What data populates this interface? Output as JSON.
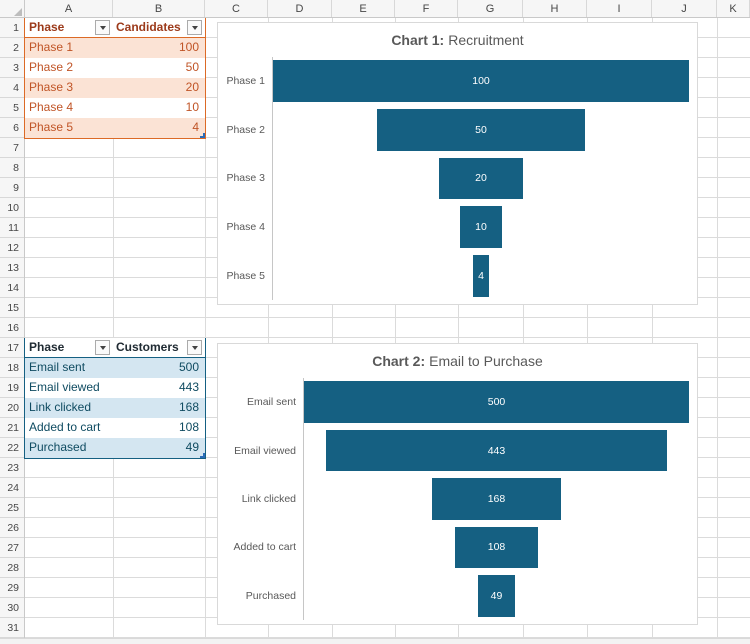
{
  "sheet": {
    "column_letters": [
      "A",
      "B",
      "C",
      "D",
      "E",
      "F",
      "G",
      "H",
      "I",
      "J",
      "K"
    ],
    "row_numbers": [
      1,
      2,
      3,
      4,
      5,
      6,
      7,
      8,
      9,
      10,
      11,
      12,
      13,
      14,
      15,
      16,
      17,
      18,
      19,
      20,
      21,
      22,
      23,
      24,
      25,
      26,
      27,
      28,
      29,
      30,
      31
    ]
  },
  "colors": {
    "accent_teal": "#156082",
    "accent_orange": "#DD6B20",
    "grid_line": "#DBDBDB",
    "header_text": "#474747",
    "chart_text": "#595959"
  },
  "tables": [
    {
      "name": "recruitment-table",
      "columns": [
        "Phase",
        "Candidates"
      ],
      "rows": [
        [
          "Phase 1",
          "100"
        ],
        [
          "Phase 2",
          "50"
        ],
        [
          "Phase 3",
          "20"
        ],
        [
          "Phase 4",
          "10"
        ],
        [
          "Phase 5",
          "4"
        ]
      ],
      "style": {
        "header_text": "#9C3A1A",
        "body_text": "#C05426",
        "band_fill": "#FBE3D5",
        "border": "#DC6A26"
      }
    },
    {
      "name": "email-funnel-table",
      "columns": [
        "Phase",
        "Customers"
      ],
      "rows": [
        [
          "Email sent",
          "500"
        ],
        [
          "Email viewed",
          "443"
        ],
        [
          "Link clicked",
          "168"
        ],
        [
          "Added to cart",
          "108"
        ],
        [
          "Purchased",
          "49"
        ]
      ],
      "style": {
        "header_text": "#202B33",
        "body_text": "#0F4B61",
        "band_fill": "#D4E6F1",
        "border": "#156082"
      }
    }
  ],
  "chart_data": [
    {
      "type": "bar",
      "subtype": "horizontal-funnel",
      "title": "Chart 1: Recruitment",
      "title_bold": "Chart 1:",
      "title_main": "Recruitment",
      "categories": [
        "Phase 1",
        "Phase 2",
        "Phase 3",
        "Phase 4",
        "Phase 5"
      ],
      "values": [
        100,
        50,
        20,
        10,
        4
      ],
      "xlim": [
        0,
        100
      ],
      "bar_color": "#156082",
      "data_labels": true,
      "data_label_color": "#FFFFFF",
      "legend": "none",
      "grid": false
    },
    {
      "type": "bar",
      "subtype": "horizontal-funnel",
      "title": "Chart 2: Email to Purchase",
      "title_bold": "Chart 2:",
      "title_main": "Email to Purchase",
      "categories": [
        "Email sent",
        "Email viewed",
        "Link clicked",
        "Added to cart",
        "Purchased"
      ],
      "values": [
        500,
        443,
        168,
        108,
        49
      ],
      "xlim": [
        0,
        500
      ],
      "bar_color": "#156082",
      "data_labels": true,
      "data_label_color": "#FFFFFF",
      "legend": "none",
      "grid": false
    }
  ]
}
